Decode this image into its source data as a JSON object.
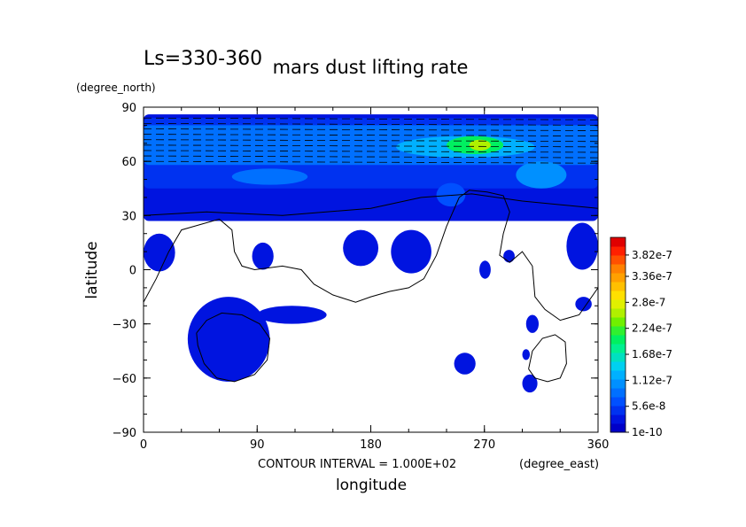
{
  "chart_data": {
    "type": "heatmap",
    "title": "mars dust lifting rate",
    "subtitle": "Ls=330-360",
    "xlabel": "longitude",
    "ylabel": "latitude",
    "x_units": "(degree_east)",
    "y_units": "(degree_north)",
    "footnote": "CONTOUR INTERVAL = 1.000E+02",
    "xlim": [
      0,
      360
    ],
    "ylim": [
      -90,
      90
    ],
    "x_ticks": [
      "0",
      "90",
      "180",
      "270",
      "360"
    ],
    "y_ticks": [
      "90",
      "60",
      "30",
      "0",
      "−30",
      "−60",
      "−90"
    ],
    "colorbar": {
      "min": 1e-10,
      "max": 4.2e-07,
      "labels": [
        "1e-10",
        "5.6e-8",
        "1.12e-7",
        "1.68e-7",
        "2.24e-7",
        "2.8e-7",
        "3.36e-7",
        "3.82e-7"
      ],
      "label_values": [
        1e-10,
        5.6e-08,
        1.12e-07,
        1.68e-07,
        2.24e-07,
        2.8e-07,
        3.36e-07,
        3.82e-07
      ],
      "colors": [
        "#0000c8",
        "#0014e0",
        "#0032f0",
        "#0050ff",
        "#0070ff",
        "#0090ff",
        "#00b0ff",
        "#00d0f0",
        "#00e0c0",
        "#00f090",
        "#00f060",
        "#30f030",
        "#70f000",
        "#b0f000",
        "#e0f000",
        "#ffe000",
        "#ffc000",
        "#ffa000",
        "#ff8000",
        "#ff5000",
        "#ff2000",
        "#e00000"
      ]
    },
    "regions": [
      {
        "name": "polar-belt",
        "lon": [
          0,
          360
        ],
        "lat": [
          27,
          86
        ],
        "value": 3e-08
      },
      {
        "name": "polar-core",
        "lon": [
          0,
          360
        ],
        "lat": [
          45,
          84
        ],
        "value": 5e-08
      },
      {
        "name": "north-cap",
        "lon": [
          0,
          360
        ],
        "lat": [
          58,
          80
        ],
        "value": 8.5e-08
      },
      {
        "name": "cap-band",
        "lon": [
          200,
          310
        ],
        "lat": [
          62,
          74
        ],
        "value": 1.3e-07
      },
      {
        "name": "hotspot",
        "lon": [
          240,
          285
        ],
        "lat": [
          64,
          74
        ],
        "value": 2.1e-07
      },
      {
        "name": "hotspot-peak",
        "lon": [
          258,
          275
        ],
        "lat": [
          66,
          72
        ],
        "value": 2.5e-07
      },
      {
        "name": "east-cap-blob",
        "lon": [
          295,
          335
        ],
        "lat": [
          45,
          60
        ],
        "value": 1.1e-07
      },
      {
        "name": "central-cap-blob",
        "lon": [
          70,
          130
        ],
        "lat": [
          47,
          56
        ],
        "value": 8e-08
      },
      {
        "name": "lobe-230",
        "lon": [
          232,
          255
        ],
        "lat": [
          35,
          48
        ],
        "value": 6.5e-08
      },
      {
        "name": "west-lobe",
        "lon": [
          0,
          25
        ],
        "lat": [
          -1,
          20
        ],
        "value": 3e-08
      },
      {
        "name": "lobe-95",
        "lon": [
          86,
          103
        ],
        "lat": [
          0,
          15
        ],
        "value": 2.5e-08
      },
      {
        "name": "lobe-165",
        "lon": [
          158,
          186
        ],
        "lat": [
          2,
          22
        ],
        "value": 3e-08
      },
      {
        "name": "lobe-205",
        "lon": [
          196,
          228
        ],
        "lat": [
          -2,
          22
        ],
        "value": 3.5e-08
      },
      {
        "name": "lobe-340",
        "lon": [
          335,
          360
        ],
        "lat": [
          0,
          26
        ],
        "value": 2.5e-08
      },
      {
        "name": "south-pool",
        "lon": [
          35,
          100
        ],
        "lat": [
          -62,
          -15
        ],
        "value": 3.5e-08
      },
      {
        "name": "south-pool-arm",
        "lon": [
          90,
          145
        ],
        "lat": [
          -30,
          -20
        ],
        "value": 3e-08
      },
      {
        "name": "spot-270",
        "lon": [
          266,
          275
        ],
        "lat": [
          -5,
          5
        ],
        "value": 2e-08
      },
      {
        "name": "spot-290",
        "lon": [
          285,
          294
        ],
        "lat": [
          4,
          11
        ],
        "value": 2e-08
      },
      {
        "name": "spot-310",
        "lon": [
          303,
          313
        ],
        "lat": [
          -35,
          -25
        ],
        "value": 2.5e-08
      },
      {
        "name": "spot-350",
        "lon": [
          342,
          355
        ],
        "lat": [
          -23,
          -15
        ],
        "value": 2.5e-08
      },
      {
        "name": "spot-255",
        "lon": [
          246,
          263
        ],
        "lat": [
          -58,
          -46
        ],
        "value": 3e-08
      },
      {
        "name": "spot-300",
        "lon": [
          300,
          312
        ],
        "lat": [
          -68,
          -58
        ],
        "value": 3e-08
      },
      {
        "name": "spot-302",
        "lon": [
          300,
          306
        ],
        "lat": [
          -50,
          -44
        ],
        "value": 2e-08
      }
    ],
    "contours": [
      {
        "name": "coastline-main",
        "points": [
          [
            0,
            -18
          ],
          [
            10,
            -5
          ],
          [
            20,
            10
          ],
          [
            30,
            22
          ],
          [
            45,
            25
          ],
          [
            60,
            28
          ],
          [
            70,
            22
          ],
          [
            72,
            10
          ],
          [
            78,
            2
          ],
          [
            88,
            0
          ],
          [
            110,
            2
          ],
          [
            125,
            0
          ],
          [
            135,
            -8
          ],
          [
            150,
            -14
          ],
          [
            168,
            -18
          ],
          [
            180,
            -15
          ],
          [
            195,
            -12
          ],
          [
            210,
            -10
          ],
          [
            222,
            -5
          ],
          [
            232,
            8
          ],
          [
            240,
            24
          ],
          [
            250,
            40
          ],
          [
            258,
            44
          ],
          [
            272,
            43
          ],
          [
            285,
            41
          ],
          [
            290,
            32
          ],
          [
            285,
            20
          ],
          [
            282,
            8
          ],
          [
            290,
            4
          ],
          [
            300,
            10
          ],
          [
            308,
            2
          ],
          [
            310,
            -15
          ],
          [
            318,
            -22
          ],
          [
            330,
            -28
          ],
          [
            345,
            -25
          ],
          [
            360,
            -10
          ]
        ]
      },
      {
        "name": "south-loop",
        "points": [
          [
            42,
            -35
          ],
          [
            50,
            -28
          ],
          [
            62,
            -24
          ],
          [
            78,
            -25
          ],
          [
            92,
            -30
          ],
          [
            100,
            -38
          ],
          [
            98,
            -50
          ],
          [
            88,
            -58
          ],
          [
            72,
            -62
          ],
          [
            58,
            -60
          ],
          [
            48,
            -52
          ],
          [
            43,
            -42
          ],
          [
            42,
            -35
          ]
        ]
      },
      {
        "name": "east-loop",
        "points": [
          [
            305,
            -55
          ],
          [
            308,
            -45
          ],
          [
            316,
            -38
          ],
          [
            326,
            -36
          ],
          [
            334,
            -40
          ],
          [
            335,
            -52
          ],
          [
            330,
            -60
          ],
          [
            320,
            -62
          ],
          [
            310,
            -60
          ],
          [
            305,
            -55
          ]
        ]
      },
      {
        "name": "polar-front",
        "points": [
          [
            0,
            30
          ],
          [
            50,
            32
          ],
          [
            110,
            30
          ],
          [
            180,
            34
          ],
          [
            220,
            40
          ],
          [
            260,
            42
          ],
          [
            300,
            38
          ],
          [
            360,
            34
          ]
        ]
      }
    ]
  }
}
